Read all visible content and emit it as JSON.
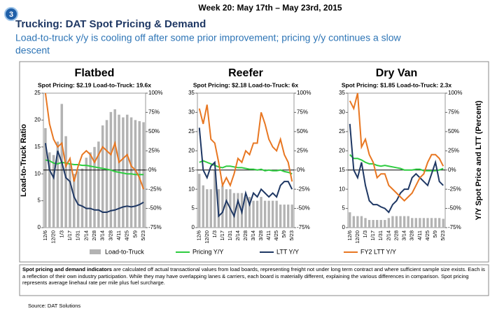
{
  "header": {
    "week": "Week 20: May 17th – May 23rd, 2015",
    "badge": "3",
    "title": "Trucking: DAT Spot Pricing & Demand",
    "subtitle_line1": "Load-to-truck y/y is cooling off after some prior improvement; pricing y/y continues a slow",
    "subtitle_line2": "descent"
  },
  "chart_data": [
    {
      "type": "combo",
      "title": "Flatbed",
      "subtitle": "Spot Pricing: $2.19 Load-to-Truck: 19.6x",
      "y_label": "Load-to-Truck Ratio",
      "categories": [
        "12/6",
        null,
        "12/20",
        null,
        "1/3",
        null,
        "1/17",
        null,
        "1/31",
        null,
        "2/14",
        null,
        "2/28",
        null,
        "3/14",
        null,
        "3/28",
        null,
        "4/11",
        null,
        "4/25",
        null,
        "5/9",
        null,
        "5/23"
      ],
      "ylim": [
        0,
        25
      ],
      "yticks": [
        0,
        5,
        10,
        15,
        20,
        25
      ],
      "y2lim": [
        -75,
        100
      ],
      "y2ticks": [
        {
          "value": -75,
          "label": "-75%"
        },
        {
          "value": -50,
          "label": "-50%"
        },
        {
          "value": -25,
          "label": "-25%"
        },
        {
          "value": 0,
          "label": "0%"
        },
        {
          "value": 25,
          "label": "25%"
        },
        {
          "value": 50,
          "label": "50%"
        },
        {
          "value": 75,
          "label": "75%"
        },
        {
          "value": 100,
          "label": "100%"
        }
      ],
      "series": [
        {
          "name": "Load-to-Truck",
          "kind": "bar",
          "color": "#b3b3b3",
          "values": [
            18.5,
            14,
            13.5,
            16,
            23,
            17,
            12,
            10,
            10.5,
            11,
            13,
            14,
            15,
            16,
            19,
            20,
            21.5,
            22,
            21,
            20.5,
            21,
            20.5,
            20,
            19.8,
            19.6
          ]
        },
        {
          "name": "Pricing Y/Y",
          "kind": "line",
          "axis": "y2",
          "color": "#2ecc40",
          "values": [
            13,
            12,
            9,
            8,
            10,
            9,
            8,
            7,
            7,
            6,
            6,
            5,
            4,
            3,
            2,
            1,
            0,
            -2,
            -3,
            -4,
            -5,
            -5,
            -6,
            -6,
            -6
          ]
        },
        {
          "name": "LTT Y/Y",
          "kind": "line",
          "axis": "y2",
          "color": "#1f3864",
          "values": [
            35,
            0,
            -10,
            25,
            10,
            -10,
            -15,
            -35,
            -45,
            -47,
            -50,
            -50,
            -52,
            -52,
            -55,
            -55,
            -53,
            -52,
            -50,
            -48,
            -47,
            -48,
            -47,
            -45,
            -42
          ]
        },
        {
          "name": "FY2 LTT Y/Y",
          "kind": "line",
          "axis": "y2",
          "color": "#e87722",
          "values": [
            100,
            60,
            40,
            30,
            35,
            5,
            15,
            -15,
            5,
            20,
            25,
            20,
            10,
            20,
            30,
            25,
            20,
            35,
            10,
            15,
            20,
            5,
            0,
            -10,
            -25
          ]
        }
      ]
    },
    {
      "type": "combo",
      "title": "Reefer",
      "subtitle": "Spot Pricing: $2.18 Load-to-Truck:  6x",
      "categories": [
        "12/6",
        null,
        "12/20",
        null,
        "1/3",
        null,
        "1/17",
        null,
        "1/31",
        null,
        "2/14",
        null,
        "2/28",
        null,
        "3/14",
        null,
        "3/28",
        null,
        "4/11",
        null,
        "4/25",
        null,
        "5/9",
        null,
        "5/23"
      ],
      "ylim": [
        0,
        35
      ],
      "yticks": [
        0,
        5,
        10,
        15,
        20,
        25,
        30,
        35
      ],
      "y2lim": [
        -75,
        100
      ],
      "y2ticks": [
        {
          "value": -75,
          "label": "-75%"
        },
        {
          "value": -50,
          "label": "-50%"
        },
        {
          "value": -25,
          "label": "-25%"
        },
        {
          "value": 0,
          "label": "0%"
        },
        {
          "value": 25,
          "label": "25%"
        },
        {
          "value": 50,
          "label": "50%"
        },
        {
          "value": 75,
          "label": "75%"
        },
        {
          "value": 100,
          "label": "100%"
        }
      ],
      "series": [
        {
          "kind": "bar",
          "color": "#b3b3b3",
          "values": [
            14,
            11,
            10,
            10,
            15,
            10,
            11,
            10,
            10,
            9,
            9,
            9,
            8,
            8,
            7,
            7,
            8,
            7,
            7,
            7,
            7,
            6,
            6,
            6,
            6
          ]
        },
        {
          "kind": "line",
          "axis": "y2",
          "color": "#2ecc40",
          "values": [
            10,
            12,
            10,
            8,
            6,
            4,
            3,
            5,
            5,
            4,
            3,
            3,
            2,
            1,
            1,
            0,
            1,
            -1,
            0,
            -1,
            -1,
            0,
            -2,
            -3,
            -5
          ]
        },
        {
          "kind": "line",
          "axis": "y2",
          "color": "#1f3864",
          "values": [
            55,
            0,
            -10,
            5,
            10,
            -60,
            -55,
            -40,
            -50,
            -60,
            -40,
            -55,
            -30,
            -45,
            -30,
            -35,
            -25,
            -30,
            -35,
            -30,
            -35,
            -20,
            -15,
            -15,
            -25
          ]
        },
        {
          "kind": "line",
          "axis": "y2",
          "color": "#e87722",
          "values": [
            80,
            60,
            85,
            40,
            35,
            10,
            -20,
            -10,
            -20,
            -5,
            15,
            10,
            25,
            20,
            35,
            35,
            75,
            60,
            40,
            30,
            25,
            40,
            20,
            10,
            -15
          ]
        }
      ]
    },
    {
      "type": "combo",
      "title": "Dry Van",
      "subtitle": "Spot Pricing: $1.85 Load-to-Truck: 2.3x",
      "y2_label": "Y/Y Spot Price and LTT (Percent)",
      "categories": [
        "12/6",
        null,
        "12/20",
        null,
        "1/3",
        null,
        "1/17",
        null,
        "1/31",
        null,
        "2/14",
        null,
        "2/28",
        null,
        "3/14",
        null,
        "3/28",
        null,
        "4/11",
        null,
        "4/25",
        null,
        "5/9",
        null,
        "5/23"
      ],
      "ylim": [
        0,
        35
      ],
      "yticks": [
        0,
        5,
        10,
        15,
        20,
        25,
        30,
        35
      ],
      "y2lim": [
        -75,
        100
      ],
      "y2ticks": [
        {
          "value": -75,
          "label": "-75%"
        },
        {
          "value": -50,
          "label": "-50%"
        },
        {
          "value": -25,
          "label": "-25%"
        },
        {
          "value": 0,
          "label": "0%"
        },
        {
          "value": 25,
          "label": "25%"
        },
        {
          "value": 50,
          "label": "50%"
        },
        {
          "value": 75,
          "label": "75%"
        },
        {
          "value": 100,
          "label": "100%"
        }
      ],
      "series": [
        {
          "kind": "bar",
          "color": "#b3b3b3",
          "values": [
            4,
            3,
            3,
            3,
            2.5,
            2,
            2,
            2,
            2,
            2,
            2.5,
            3,
            3,
            3,
            3,
            3,
            2.5,
            2.5,
            2.5,
            2.5,
            2.5,
            2.5,
            2.5,
            2.5,
            2.3
          ]
        },
        {
          "kind": "line",
          "axis": "y2",
          "color": "#2ecc40",
          "values": [
            20,
            15,
            15,
            13,
            10,
            8,
            8,
            6,
            5,
            6,
            5,
            4,
            3,
            2,
            0,
            0,
            0,
            1,
            1,
            -1,
            -1,
            -1,
            -1,
            0,
            2
          ]
        },
        {
          "kind": "line",
          "axis": "y2",
          "color": "#1f3864",
          "values": [
            60,
            0,
            -10,
            10,
            -20,
            -40,
            -45,
            -45,
            -48,
            -50,
            -55,
            -45,
            -40,
            -30,
            -25,
            -25,
            -10,
            -5,
            -10,
            -15,
            -20,
            -5,
            10,
            -15,
            -20
          ]
        },
        {
          "kind": "line",
          "axis": "y2",
          "color": "#e87722",
          "values": [
            90,
            80,
            100,
            30,
            40,
            20,
            10,
            -10,
            -5,
            -5,
            -20,
            -25,
            -30,
            -35,
            -40,
            -35,
            -30,
            -20,
            -10,
            -5,
            10,
            20,
            20,
            15,
            5
          ]
        }
      ]
    }
  ],
  "note": {
    "bold": "Spot pricing and demand indicators",
    "text": " are calculated off actual transactional  values from load boards, representing freight not under long term contract and where sufficient sample size exists. Each is a reflection of their own industry participation. While they may have overlapping lanes & carriers, each board is materially different, explaining the various differences in comparison. Spot pricing represents average linehaul rate per mile plus fuel surcharge."
  },
  "source": "Source: DAT Solutions"
}
